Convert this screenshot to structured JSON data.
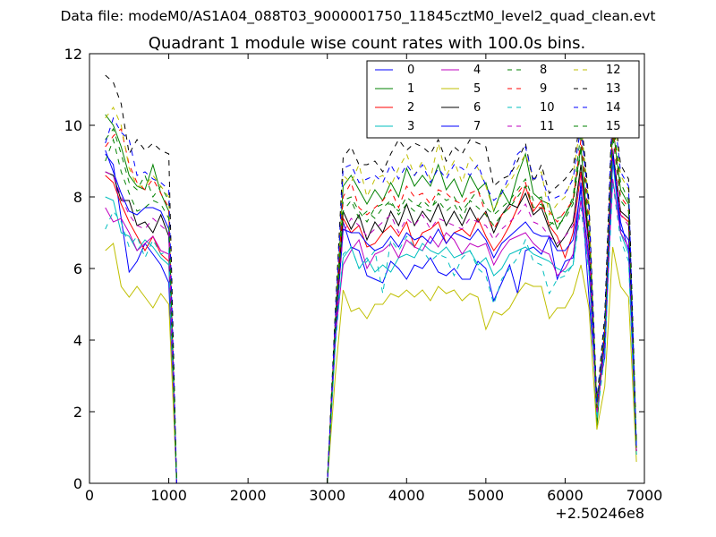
{
  "figure": {
    "suptitle": "Data file: modeM0/AS1A04_088T03_9000001750_11845cztM0_level2_quad_clean.evt"
  },
  "chart_data": {
    "type": "line",
    "title": "Quadrant 1 module wise count rates with 100.0s bins.",
    "xlabel": "",
    "ylabel": "",
    "x_offset_label": "+2.50246e8",
    "xlim": [
      0,
      7000
    ],
    "ylim": [
      0,
      12
    ],
    "xticks": [
      0,
      1000,
      2000,
      3000,
      4000,
      5000,
      6000,
      7000
    ],
    "yticks": [
      0,
      2,
      4,
      6,
      8,
      10,
      12
    ],
    "legend_position": "top-right",
    "legend_columns": 4,
    "x": [
      200,
      300,
      400,
      500,
      600,
      700,
      800,
      900,
      1000,
      1100,
      1200,
      1300,
      1400,
      1500,
      1600,
      1700,
      1800,
      1900,
      2000,
      2100,
      2200,
      2300,
      2400,
      2500,
      2600,
      2700,
      2800,
      2900,
      3000,
      3100,
      3200,
      3300,
      3400,
      3500,
      3600,
      3700,
      3800,
      3900,
      4000,
      4100,
      4200,
      4300,
      4400,
      4500,
      4600,
      4700,
      4800,
      4900,
      5000,
      5100,
      5200,
      5300,
      5400,
      5500,
      5600,
      5700,
      5800,
      5900,
      6000,
      6100,
      6200,
      6300,
      6400,
      6500,
      6600,
      6700,
      6800,
      6900
    ],
    "series": [
      {
        "name": "0",
        "color": "#0000ff",
        "dash": "solid",
        "values": [
          9.2,
          8.9,
          7.4,
          5.9,
          6.2,
          6.7,
          6.4,
          6.1,
          5.6,
          0,
          0,
          0,
          0,
          0,
          0,
          0,
          0,
          0,
          0,
          0,
          0,
          0,
          0,
          0,
          0,
          0,
          0,
          0,
          0,
          3.9,
          7.3,
          6.6,
          6.5,
          5.8,
          5.7,
          5.6,
          6.2,
          6.0,
          5.7,
          6.1,
          6.0,
          6.3,
          5.9,
          5.8,
          6.0,
          5.7,
          5.7,
          6.2,
          6.0,
          5.1,
          5.6,
          6.1,
          5.3,
          6.5,
          6.6,
          6.4,
          6.9,
          5.7,
          6.2,
          6.3,
          8.4,
          5.2,
          2.4,
          3.5,
          9.0,
          7.3,
          6.5,
          0.9
        ]
      },
      {
        "name": "1",
        "color": "#008000",
        "dash": "solid",
        "values": [
          10.3,
          10.0,
          9.4,
          8.6,
          8.3,
          8.2,
          8.9,
          8.1,
          7.6,
          0,
          0,
          0,
          0,
          0,
          0,
          0,
          0,
          0,
          0,
          0,
          0,
          0,
          0,
          0,
          0,
          0,
          0,
          0,
          0,
          4.5,
          8.3,
          8.6,
          8.2,
          7.8,
          8.2,
          7.9,
          8.4,
          8.0,
          8.8,
          8.3,
          8.6,
          8.3,
          8.9,
          8.2,
          8.5,
          8.0,
          8.6,
          8.2,
          8.4,
          7.6,
          8.2,
          7.8,
          8.6,
          9.2,
          8.1,
          7.9,
          7.8,
          7.1,
          7.5,
          7.9,
          9.4,
          6.8,
          1.6,
          4.3,
          10.0,
          8.2,
          7.8,
          1.0
        ]
      },
      {
        "name": "2",
        "color": "#ff0000",
        "dash": "solid",
        "values": [
          8.6,
          8.4,
          7.8,
          7.3,
          6.9,
          6.5,
          6.9,
          6.4,
          6.2,
          0,
          0,
          0,
          0,
          0,
          0,
          0,
          0,
          0,
          0,
          0,
          0,
          0,
          0,
          0,
          0,
          0,
          0,
          0,
          0,
          4.2,
          7.4,
          7.0,
          7.2,
          6.6,
          6.7,
          7.0,
          7.2,
          6.9,
          7.3,
          6.6,
          7.0,
          7.1,
          7.3,
          6.7,
          7.0,
          7.1,
          6.9,
          7.4,
          6.9,
          6.5,
          6.8,
          7.2,
          7.7,
          8.3,
          7.6,
          7.9,
          7.2,
          6.9,
          6.3,
          7.0,
          8.7,
          6.6,
          2.1,
          4.0,
          9.2,
          7.5,
          7.3,
          0.9
        ]
      },
      {
        "name": "3",
        "color": "#00bfbf",
        "dash": "solid",
        "values": [
          8.0,
          7.9,
          7.0,
          6.9,
          6.5,
          6.8,
          6.6,
          6.3,
          6.1,
          0,
          0,
          0,
          0,
          0,
          0,
          0,
          0,
          0,
          0,
          0,
          0,
          0,
          0,
          0,
          0,
          0,
          0,
          0,
          0,
          4.0,
          6.3,
          6.6,
          6.0,
          6.3,
          5.9,
          6.1,
          5.9,
          6.3,
          6.4,
          6.3,
          6.7,
          6.5,
          6.4,
          6.6,
          6.3,
          6.4,
          6.5,
          6.1,
          6.3,
          5.8,
          6.0,
          6.4,
          6.5,
          6.6,
          6.4,
          6.3,
          6.2,
          6.0,
          5.9,
          6.1,
          8.0,
          6.0,
          2.0,
          3.8,
          9.0,
          7.0,
          6.4,
          0.8
        ]
      },
      {
        "name": "4",
        "color": "#bf00bf",
        "dash": "solid",
        "values": [
          7.7,
          7.3,
          7.4,
          7.0,
          6.5,
          6.7,
          6.9,
          6.5,
          6.4,
          0,
          0,
          0,
          0,
          0,
          0,
          0,
          0,
          0,
          0,
          0,
          0,
          0,
          0,
          0,
          0,
          0,
          0,
          0,
          0,
          4.1,
          6.1,
          6.5,
          6.8,
          6.0,
          6.4,
          6.5,
          6.7,
          6.3,
          6.8,
          6.6,
          6.5,
          6.9,
          6.6,
          7.0,
          6.8,
          6.4,
          6.7,
          6.6,
          6.7,
          6.1,
          6.5,
          6.8,
          6.9,
          7.0,
          6.7,
          6.5,
          6.4,
          5.8,
          6.0,
          6.4,
          7.9,
          6.1,
          1.9,
          3.9,
          8.5,
          7.0,
          6.6,
          0.8
        ]
      },
      {
        "name": "5",
        "color": "#bfbf00",
        "dash": "solid",
        "values": [
          6.5,
          6.7,
          5.5,
          5.2,
          5.5,
          5.2,
          4.9,
          5.3,
          5.0,
          0,
          0,
          0,
          0,
          0,
          0,
          0,
          0,
          0,
          0,
          0,
          0,
          0,
          0,
          0,
          0,
          0,
          0,
          0,
          0,
          3.0,
          5.4,
          4.8,
          4.9,
          4.6,
          5.0,
          5.0,
          5.3,
          5.2,
          5.4,
          5.2,
          5.4,
          5.1,
          5.5,
          5.3,
          5.4,
          5.1,
          5.3,
          5.2,
          4.3,
          4.8,
          4.7,
          4.9,
          5.3,
          5.6,
          5.5,
          5.5,
          4.6,
          4.9,
          4.9,
          5.3,
          6.1,
          4.9,
          1.5,
          2.7,
          6.6,
          5.5,
          5.2,
          0.6
        ]
      },
      {
        "name": "6",
        "color": "#000000",
        "dash": "solid",
        "values": [
          8.7,
          8.6,
          7.9,
          7.9,
          7.2,
          7.3,
          7.0,
          7.5,
          6.9,
          0,
          0,
          0,
          0,
          0,
          0,
          0,
          0,
          0,
          0,
          0,
          0,
          0,
          0,
          0,
          0,
          0,
          0,
          0,
          0,
          4.3,
          7.6,
          7.1,
          7.5,
          6.8,
          7.3,
          7.0,
          7.6,
          7.2,
          7.8,
          7.2,
          7.6,
          7.3,
          7.8,
          7.2,
          7.6,
          7.2,
          7.7,
          7.3,
          7.6,
          7.0,
          7.5,
          7.8,
          7.7,
          8.1,
          7.5,
          7.7,
          7.1,
          6.6,
          6.9,
          7.3,
          8.9,
          6.7,
          2.2,
          4.1,
          9.3,
          7.6,
          7.4,
          0.9
        ]
      },
      {
        "name": "7",
        "color": "#0000ff",
        "dash": "solid",
        "values": [
          9.3,
          8.7,
          8.1,
          7.6,
          7.5,
          7.7,
          7.7,
          7.6,
          7.1,
          0,
          0,
          0,
          0,
          0,
          0,
          0,
          0,
          0,
          0,
          0,
          0,
          0,
          0,
          0,
          0,
          0,
          0,
          0,
          0,
          4.1,
          7.1,
          7.0,
          7.0,
          6.7,
          6.5,
          6.6,
          6.9,
          6.6,
          7.0,
          6.8,
          6.9,
          6.7,
          7.1,
          6.7,
          7.0,
          6.9,
          6.8,
          7.1,
          6.8,
          6.3,
          6.7,
          6.9,
          7.1,
          7.3,
          7.0,
          6.9,
          6.9,
          6.5,
          6.5,
          6.8,
          8.2,
          6.3,
          2.2,
          3.9,
          9.2,
          7.1,
          6.8,
          0.9
        ]
      },
      {
        "name": "8",
        "color": "#008000",
        "dash": "dashed",
        "values": [
          9.6,
          9.9,
          9.2,
          8.4,
          8.2,
          8.6,
          8.0,
          8.3,
          7.9,
          0,
          0,
          0,
          0,
          0,
          0,
          0,
          0,
          0,
          0,
          0,
          0,
          0,
          0,
          0,
          0,
          0,
          0,
          0,
          0,
          4.4,
          7.9,
          8.0,
          7.6,
          7.3,
          7.7,
          7.8,
          7.8,
          7.6,
          8.0,
          7.8,
          7.7,
          7.6,
          8.1,
          7.9,
          8.0,
          7.6,
          7.9,
          8.2,
          7.7,
          7.5,
          7.7,
          7.9,
          8.2,
          8.5,
          7.9,
          8.0,
          7.2,
          7.4,
          7.5,
          8.0,
          9.8,
          7.6,
          2.1,
          4.4,
          10.2,
          8.4,
          7.9,
          1.0
        ]
      },
      {
        "name": "9",
        "color": "#ff0000",
        "dash": "dashed",
        "values": [
          9.4,
          9.7,
          9.9,
          8.9,
          8.4,
          8.2,
          8.5,
          8.1,
          7.7,
          0,
          0,
          0,
          0,
          0,
          0,
          0,
          0,
          0,
          0,
          0,
          0,
          0,
          0,
          0,
          0,
          0,
          0,
          0,
          0,
          4.5,
          8.0,
          8.4,
          7.7,
          7.5,
          7.7,
          7.9,
          8.2,
          7.7,
          8.3,
          8.0,
          8.1,
          7.8,
          8.2,
          8.1,
          7.9,
          7.8,
          8.1,
          8.2,
          7.5,
          7.1,
          7.5,
          7.7,
          8.1,
          8.4,
          7.7,
          7.7,
          7.6,
          7.3,
          7.6,
          7.9,
          9.6,
          7.3,
          2.0,
          4.3,
          9.9,
          8.0,
          7.7,
          1.0
        ]
      },
      {
        "name": "10",
        "color": "#00bfbf",
        "dash": "dashed",
        "values": [
          7.1,
          7.6,
          7.3,
          6.6,
          6.9,
          6.3,
          6.8,
          6.4,
          6.5,
          0,
          0,
          0,
          0,
          0,
          0,
          0,
          0,
          0,
          0,
          0,
          0,
          0,
          0,
          0,
          0,
          0,
          0,
          0,
          0,
          3.8,
          6.4,
          6.6,
          6.0,
          6.2,
          6.5,
          5.3,
          6.8,
          6.5,
          6.9,
          6.6,
          6.5,
          6.2,
          6.4,
          6.3,
          5.8,
          6.3,
          6.5,
          6.0,
          5.8,
          5.0,
          5.7,
          6.0,
          6.3,
          6.8,
          6.2,
          6.1,
          5.3,
          5.7,
          5.8,
          6.1,
          7.7,
          5.9,
          1.8,
          3.6,
          8.4,
          6.8,
          6.2,
          0.8
        ]
      },
      {
        "name": "11",
        "color": "#bf00bf",
        "dash": "dashed",
        "values": [
          8.7,
          8.6,
          8.0,
          7.5,
          7.2,
          7.1,
          7.4,
          7.2,
          7.0,
          0,
          0,
          0,
          0,
          0,
          0,
          0,
          0,
          0,
          0,
          0,
          0,
          0,
          0,
          0,
          0,
          0,
          0,
          0,
          0,
          4.2,
          7.0,
          7.4,
          7.2,
          6.9,
          7.1,
          7.3,
          7.5,
          7.0,
          7.4,
          7.2,
          7.5,
          7.1,
          7.4,
          7.3,
          7.2,
          7.1,
          7.4,
          7.3,
          7.2,
          6.8,
          7.1,
          7.3,
          7.5,
          7.8,
          7.3,
          7.2,
          6.9,
          6.7,
          6.9,
          7.2,
          8.6,
          6.6,
          2.0,
          4.0,
          9.4,
          7.5,
          7.2,
          0.9
        ]
      },
      {
        "name": "12",
        "color": "#bfbf00",
        "dash": "dashed",
        "values": [
          10.2,
          10.5,
          10.0,
          8.8,
          8.3,
          8.3,
          8.6,
          8.3,
          8.0,
          0,
          0,
          0,
          0,
          0,
          0,
          0,
          0,
          0,
          0,
          0,
          0,
          0,
          0,
          0,
          0,
          0,
          0,
          0,
          0,
          4.6,
          8.6,
          8.4,
          8.9,
          8.0,
          8.5,
          8.6,
          8.3,
          8.8,
          9.2,
          8.6,
          9.0,
          8.5,
          9.5,
          8.6,
          9.0,
          8.4,
          9.1,
          8.8,
          8.3,
          7.6,
          8.1,
          8.4,
          8.8,
          9.2,
          8.5,
          8.7,
          7.5,
          7.8,
          8.0,
          8.6,
          10.1,
          7.8,
          2.2,
          4.5,
          10.6,
          8.6,
          8.2,
          1.0
        ]
      },
      {
        "name": "13",
        "color": "#000000",
        "dash": "dashed",
        "values": [
          11.4,
          11.2,
          10.6,
          9.2,
          9.6,
          9.3,
          9.5,
          9.3,
          9.2,
          0,
          0,
          0,
          0,
          0,
          0,
          0,
          0,
          0,
          0,
          0,
          0,
          0,
          0,
          0,
          0,
          0,
          0,
          0,
          0,
          4.8,
          9.1,
          9.4,
          8.9,
          8.9,
          9.0,
          8.7,
          9.2,
          9.6,
          9.3,
          9.5,
          9.4,
          9.2,
          9.6,
          9.0,
          9.4,
          9.2,
          9.6,
          9.5,
          9.4,
          8.3,
          8.5,
          8.6,
          9.0,
          9.5,
          8.4,
          8.9,
          8.1,
          8.3,
          8.5,
          8.8,
          10.3,
          7.9,
          2.3,
          4.7,
          10.9,
          8.9,
          8.5,
          1.1
        ]
      },
      {
        "name": "14",
        "color": "#0000ff",
        "dash": "dashed",
        "values": [
          9.5,
          10.2,
          9.8,
          9.6,
          8.6,
          8.7,
          8.5,
          8.4,
          8.2,
          0,
          0,
          0,
          0,
          0,
          0,
          0,
          0,
          0,
          0,
          0,
          0,
          0,
          0,
          0,
          0,
          0,
          0,
          0,
          0,
          4.6,
          8.8,
          8.9,
          8.4,
          8.5,
          8.6,
          8.4,
          8.9,
          8.5,
          8.9,
          8.6,
          8.9,
          8.4,
          8.8,
          8.5,
          8.9,
          8.8,
          8.6,
          8.9,
          8.3,
          7.9,
          8.1,
          8.6,
          9.2,
          9.4,
          8.5,
          8.6,
          7.9,
          8.0,
          8.1,
          8.5,
          10.0,
          7.7,
          2.2,
          4.5,
          10.7,
          8.7,
          8.3,
          1.0
        ]
      },
      {
        "name": "15",
        "color": "#008000",
        "dash": "dashed",
        "values": [
          9.0,
          9.6,
          8.7,
          8.1,
          7.6,
          7.7,
          7.9,
          7.8,
          7.4,
          0,
          0,
          0,
          0,
          0,
          0,
          0,
          0,
          0,
          0,
          0,
          0,
          0,
          0,
          0,
          0,
          0,
          0,
          0,
          0,
          4.3,
          7.6,
          7.9,
          7.4,
          7.6,
          7.4,
          7.7,
          7.9,
          7.5,
          7.8,
          7.6,
          7.9,
          7.7,
          7.9,
          7.6,
          7.8,
          7.4,
          7.9,
          7.7,
          7.5,
          7.2,
          7.5,
          7.7,
          8.0,
          8.3,
          7.7,
          7.8,
          7.3,
          7.2,
          7.4,
          7.8,
          9.3,
          7.1,
          2.1,
          4.2,
          9.7,
          7.9,
          7.6,
          1.0
        ]
      }
    ]
  }
}
